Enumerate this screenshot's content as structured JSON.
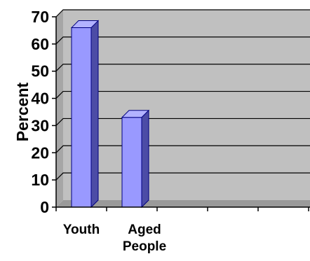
{
  "chart_data": {
    "type": "bar",
    "categories": [
      "Youth",
      "Aged People"
    ],
    "category_lines": [
      [
        "Youth"
      ],
      [
        "Aged",
        "People"
      ]
    ],
    "values": [
      66,
      33
    ],
    "xlabel": "",
    "ylabel": "Percent",
    "ylim": [
      0,
      70
    ],
    "yticks": [
      0,
      10,
      20,
      30,
      40,
      50,
      60,
      70
    ],
    "grid": true,
    "legend": "none",
    "three_d": true,
    "colors": {
      "bar_front": "#9999ff",
      "bar_side": "#4c4ca6",
      "bar_top": "#b2b2ff",
      "bar_outline": "#000080",
      "plot_background": "#c0c0c0",
      "floor": "#9a9a9a",
      "wall_left": "#a6a6a6",
      "gridline": "#000000"
    }
  }
}
